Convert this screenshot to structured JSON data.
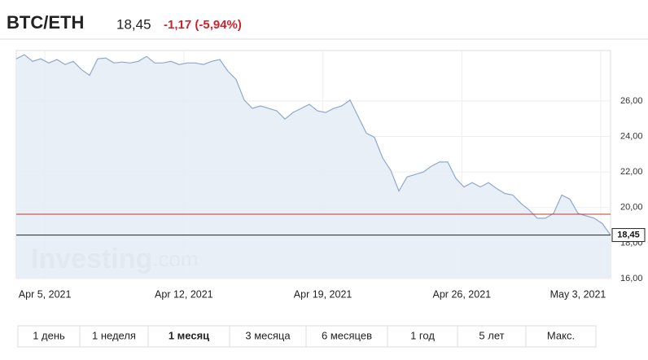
{
  "header": {
    "symbol": "BTC/ETH",
    "price": "18,45",
    "change": "-1,17 (-5,94%)"
  },
  "chart_data": {
    "type": "area",
    "x": [
      3.56,
      3.97,
      4.38,
      4.79,
      5.2,
      5.61,
      6.02,
      6.43,
      6.84,
      7.25,
      7.66,
      8.07,
      8.48,
      8.89,
      9.3,
      9.71,
      10.12,
      10.53,
      10.94,
      11.35,
      11.76,
      12.17,
      12.58,
      12.99,
      13.4,
      13.81,
      14.22,
      14.63,
      15.04,
      15.45,
      15.86,
      16.27,
      16.68,
      17.09,
      17.5,
      17.91,
      18.32,
      18.73,
      19.14,
      19.55,
      19.96,
      20.37,
      20.78,
      21.19,
      21.6,
      22.01,
      22.42,
      22.83,
      23.24,
      23.65,
      24.06,
      24.47,
      24.88,
      25.29,
      25.7,
      26.11,
      26.52,
      26.93,
      27.34,
      27.75,
      28.16,
      28.57,
      28.98,
      29.39,
      29.8,
      30.21,
      30.62,
      31.03,
      31.44,
      31.85,
      32.26,
      32.67,
      33.08,
      33.49
    ],
    "values": [
      28.37,
      28.6,
      28.23,
      28.37,
      28.14,
      28.33,
      28.05,
      28.23,
      27.77,
      27.44,
      28.37,
      28.42,
      28.14,
      28.19,
      28.14,
      28.23,
      28.51,
      28.14,
      28.14,
      28.23,
      28.05,
      28.14,
      28.14,
      28.05,
      28.23,
      28.33,
      27.67,
      27.21,
      26.05,
      25.58,
      25.72,
      25.58,
      25.44,
      24.98,
      25.35,
      25.58,
      25.81,
      25.44,
      25.35,
      25.58,
      25.72,
      26.05,
      25.12,
      24.19,
      23.95,
      22.79,
      22.09,
      20.93,
      21.72,
      21.86,
      22.0,
      22.33,
      22.56,
      22.56,
      21.63,
      21.16,
      21.4,
      21.16,
      21.4,
      21.07,
      20.79,
      20.7,
      20.23,
      19.86,
      19.4,
      19.4,
      19.67,
      20.7,
      20.47,
      19.67,
      19.53,
      19.4,
      19.09,
      18.45
    ],
    "color": "#8fa8cf",
    "fill": "#e6edf6",
    "xlim": [
      3.56,
      33.49
    ],
    "xticks": [
      {
        "value": 5,
        "label": "Apr 5, 2021"
      },
      {
        "value": 12,
        "label": "Apr 12, 2021"
      },
      {
        "value": 19,
        "label": "Apr 19, 2021"
      },
      {
        "value": 26,
        "label": "Apr 26, 2021"
      },
      {
        "value": 33,
        "label": "May 3, 2021"
      }
    ],
    "ylim": [
      16,
      28.84
    ],
    "yticks": [
      {
        "value": 16,
        "label": "16,00"
      },
      {
        "value": 18,
        "label": "18,00"
      },
      {
        "value": 20,
        "label": "20,00"
      },
      {
        "value": 22,
        "label": "22,00"
      },
      {
        "value": 24,
        "label": "24,00"
      },
      {
        "value": 26,
        "label": "26,00"
      }
    ],
    "grid": true,
    "reference_line": {
      "value": 19.62,
      "color": "#c0392b"
    },
    "last_value": {
      "value": 18.45,
      "label": "18,45"
    },
    "watermark": {
      "brand": "Investing",
      "suffix": ".com"
    }
  },
  "ranges": {
    "items": [
      "1 день",
      "1 неделя",
      "1 месяц",
      "3 месяца",
      "6 месяцев",
      "1 год",
      "5 лет",
      "Макс."
    ],
    "active": 2
  }
}
